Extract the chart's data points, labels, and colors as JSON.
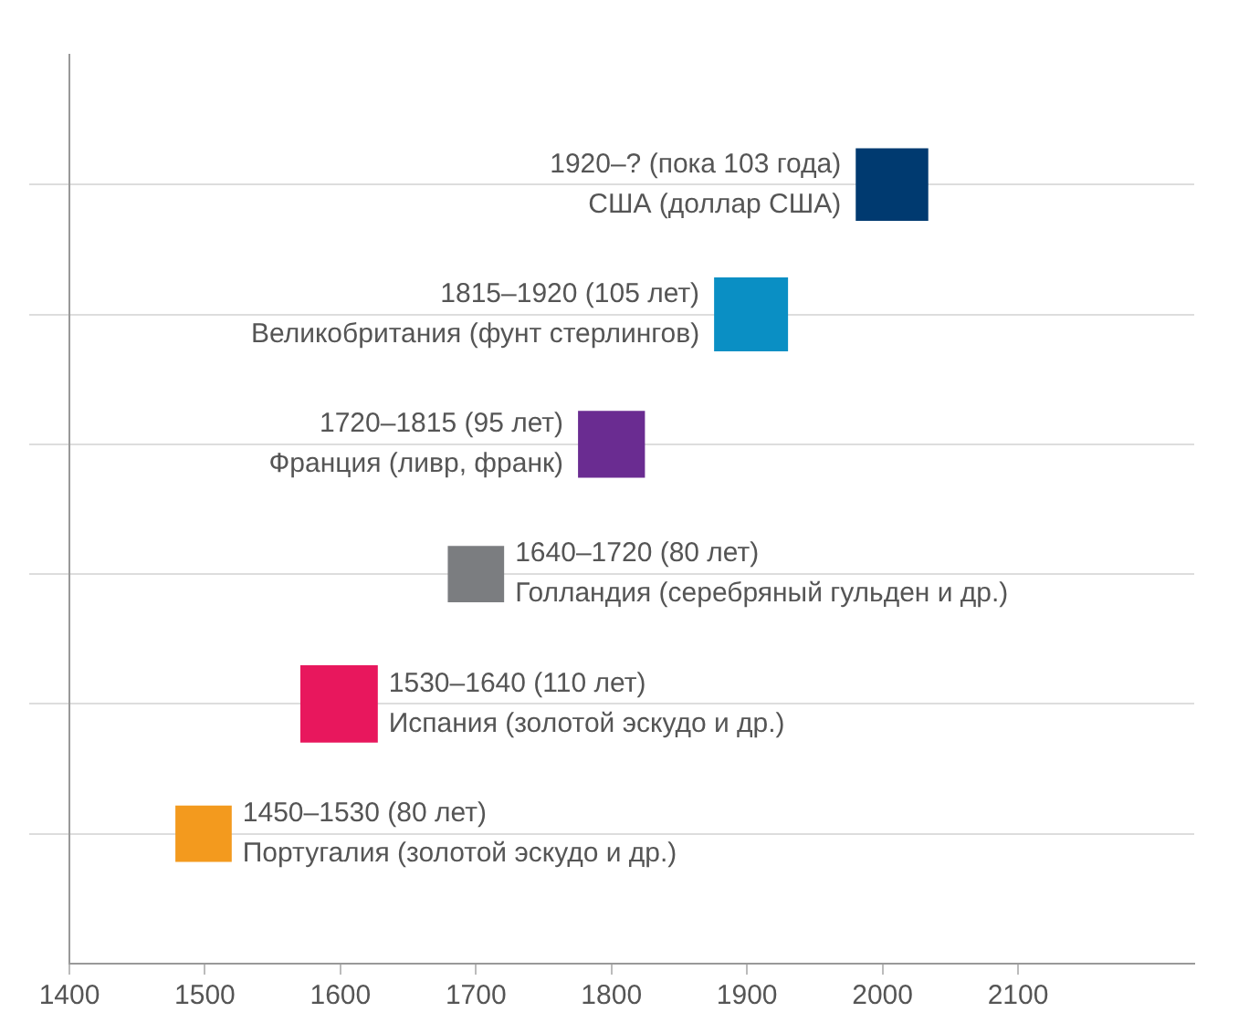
{
  "chart_data": {
    "type": "bubble",
    "orientation": "horizontal",
    "categories": [
      null,
      null,
      null,
      null,
      null,
      null
    ],
    "values": [
      2007,
      1903,
      1800,
      1700,
      1599,
      1499
    ],
    "sizes": [
      0.877,
      0.911,
      0.746,
      0.529,
      1,
      0.529
    ],
    "colors": [
      "#003a70",
      "#0a8fc4",
      "#6a2c91",
      "#7b7d80",
      "#e8175d",
      "#f39a1e"
    ],
    "marker": "square",
    "xlim": [
      1400,
      2230
    ],
    "xticks": [
      1400,
      1500,
      1600,
      1700,
      1800,
      1900,
      2000,
      2100
    ],
    "grid": "y",
    "tick_labels": "x",
    "legend": false,
    "annotations": [
      "1920–? (пока 103 года)\nСША (доллар США)",
      "1815–1920 (105 лет)\nВеликобритания (фунт стерлингов)",
      "1720–1815 (95 лет)\nФранция (ливр, франк)",
      "1640–1720 (80 лет)\nГолландия (серебряный гульден и др.)",
      "1530–1640 (110 лет)\nИспания (золотой эскудо и др.)",
      "1450–1530 (80 лет)\nПортугалия (золотой эскудо и др.)"
    ]
  }
}
